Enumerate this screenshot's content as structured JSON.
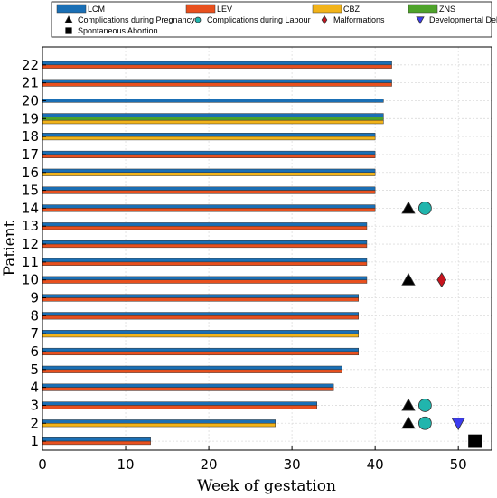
{
  "chart_data": {
    "type": "bar",
    "orientation": "horizontal",
    "xlabel": "Week of gestation",
    "ylabel": "Patient",
    "xlim": [
      0,
      54
    ],
    "ylim": [
      0.5,
      23
    ],
    "xticks": [
      0,
      10,
      20,
      30,
      40,
      50
    ],
    "yticks": [
      1,
      2,
      3,
      4,
      5,
      6,
      7,
      8,
      9,
      10,
      11,
      12,
      13,
      14,
      15,
      16,
      17,
      18,
      19,
      20,
      21,
      22
    ],
    "grid": true,
    "legend_placement": "top",
    "medications": [
      {
        "name": "LCM",
        "color": "#1a6fb5"
      },
      {
        "name": "LEV",
        "color": "#e8501e"
      },
      {
        "name": "CBZ",
        "color": "#f2b319"
      },
      {
        "name": "ZNS",
        "color": "#4ea32a"
      }
    ],
    "outcomes": [
      {
        "name": "Complications during Pregnancy",
        "symbol": "triangle-up",
        "color": "#000000"
      },
      {
        "name": "Complications during Labour",
        "symbol": "circle",
        "color": "#21b5ad"
      },
      {
        "name": "Malformations",
        "symbol": "diamond",
        "color": "#c8141e"
      },
      {
        "name": "Developmental Delay",
        "symbol": "triangle-down",
        "color": "#3c3cf0"
      },
      {
        "name": "Spontaneous Abortion",
        "symbol": "square",
        "color": "#000000"
      }
    ],
    "patients": [
      {
        "patient": 1,
        "weeks": 13,
        "drugs": [
          "LCM",
          "LEV"
        ]
      },
      {
        "patient": 2,
        "weeks": 28,
        "drugs": [
          "LCM",
          "CBZ"
        ]
      },
      {
        "patient": 3,
        "weeks": 33,
        "drugs": [
          "LCM",
          "LEV"
        ]
      },
      {
        "patient": 4,
        "weeks": 35,
        "drugs": [
          "LCM",
          "LEV"
        ]
      },
      {
        "patient": 5,
        "weeks": 36,
        "drugs": [
          "LCM",
          "LEV"
        ]
      },
      {
        "patient": 6,
        "weeks": 38,
        "drugs": [
          "LCM",
          "LEV"
        ]
      },
      {
        "patient": 7,
        "weeks": 38,
        "drugs": [
          "LCM",
          "CBZ"
        ]
      },
      {
        "patient": 8,
        "weeks": 38,
        "drugs": [
          "LCM",
          "LEV"
        ]
      },
      {
        "patient": 9,
        "weeks": 38,
        "drugs": [
          "LCM",
          "LEV"
        ]
      },
      {
        "patient": 10,
        "weeks": 39,
        "drugs": [
          "LCM",
          "LEV"
        ]
      },
      {
        "patient": 11,
        "weeks": 39,
        "drugs": [
          "LCM",
          "LEV"
        ]
      },
      {
        "patient": 12,
        "weeks": 39,
        "drugs": [
          "LCM",
          "LEV"
        ]
      },
      {
        "patient": 13,
        "weeks": 39,
        "drugs": [
          "LCM",
          "LEV"
        ]
      },
      {
        "patient": 14,
        "weeks": 40,
        "drugs": [
          "LCM",
          "LEV"
        ]
      },
      {
        "patient": 15,
        "weeks": 40,
        "drugs": [
          "LCM",
          "LEV"
        ]
      },
      {
        "patient": 16,
        "weeks": 40,
        "drugs": [
          "LCM",
          "CBZ"
        ]
      },
      {
        "patient": 17,
        "weeks": 40,
        "drugs": [
          "LCM",
          "LEV"
        ]
      },
      {
        "patient": 18,
        "weeks": 40,
        "drugs": [
          "LCM",
          "CBZ"
        ]
      },
      {
        "patient": 19,
        "weeks": 41,
        "drugs": [
          "LCM",
          "ZNS",
          "CBZ"
        ]
      },
      {
        "patient": 20,
        "weeks": 41,
        "drugs": [
          "LCM"
        ]
      },
      {
        "patient": 21,
        "weeks": 42,
        "drugs": [
          "LCM",
          "LEV"
        ]
      },
      {
        "patient": 22,
        "weeks": 42,
        "drugs": [
          "LCM",
          "LEV"
        ]
      }
    ],
    "events": [
      {
        "patient": 1,
        "week": 52,
        "outcome": "Spontaneous Abortion"
      },
      {
        "patient": 2,
        "week": 44,
        "outcome": "Complications during Pregnancy"
      },
      {
        "patient": 2,
        "week": 46,
        "outcome": "Complications during Labour"
      },
      {
        "patient": 2,
        "week": 50,
        "outcome": "Developmental Delay"
      },
      {
        "patient": 3,
        "week": 44,
        "outcome": "Complications during Pregnancy"
      },
      {
        "patient": 3,
        "week": 46,
        "outcome": "Complications during Labour"
      },
      {
        "patient": 10,
        "week": 44,
        "outcome": "Complications during Pregnancy"
      },
      {
        "patient": 10,
        "week": 48,
        "outcome": "Malformations"
      },
      {
        "patient": 14,
        "week": 44,
        "outcome": "Complications during Pregnancy"
      },
      {
        "patient": 14,
        "week": 46,
        "outcome": "Complications during Labour"
      }
    ]
  }
}
